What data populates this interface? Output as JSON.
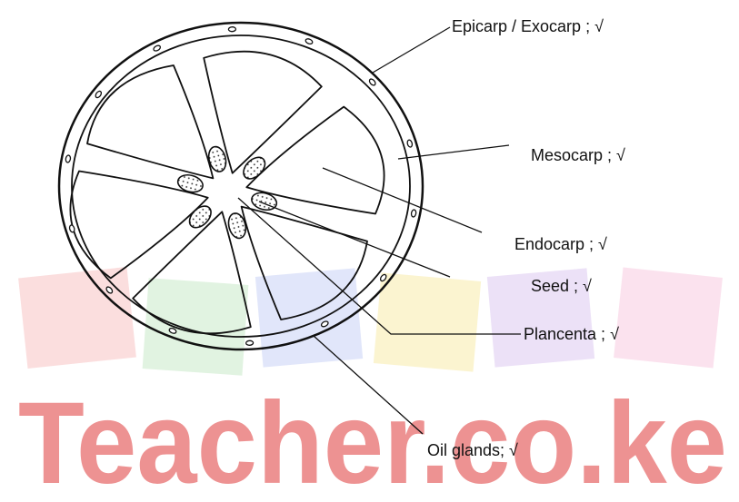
{
  "labels": [
    "Epicarp / Exocarp ; √",
    "Mesocarp ; √",
    "Endocarp ; √",
    "Seed ; √",
    "Plancenta ; √",
    "Oil glands; √"
  ],
  "watermark": "Teacher.co.ke"
}
